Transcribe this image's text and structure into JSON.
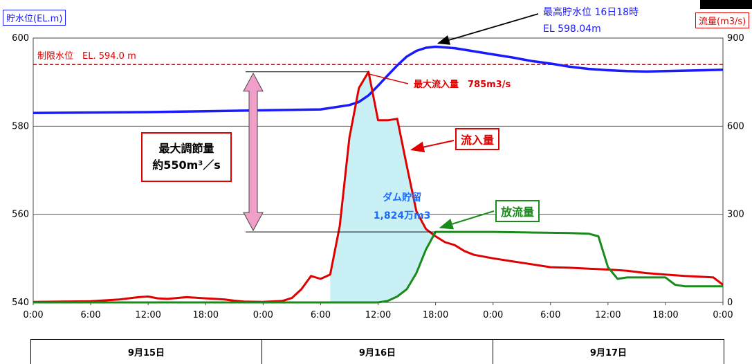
{
  "chart_data": {
    "type": "line",
    "left_axis": {
      "label": "貯水位(EL.m)",
      "min": 540,
      "max": 600,
      "ticks": [
        "540",
        "560",
        "580",
        "600"
      ]
    },
    "right_axis": {
      "label": "流量(m3/s)",
      "min": 0,
      "max": 900,
      "ticks": [
        "0",
        "300",
        "600",
        "900"
      ]
    },
    "x_tick_labels": [
      "0:00",
      "6:00",
      "12:00",
      "18:00",
      "0:00",
      "6:00",
      "12:00",
      "18:00",
      "0:00",
      "6:00",
      "12:00",
      "18:00",
      "0:00"
    ],
    "x_range_hours": [
      0,
      72
    ],
    "date_labels": [
      "9月15日",
      "9月16日",
      "9月17日"
    ],
    "series": [
      {
        "name": "貯水位",
        "axis": "left",
        "color": "#1a1aff",
        "points": [
          [
            0,
            583
          ],
          [
            6,
            583.1
          ],
          [
            12,
            583.2
          ],
          [
            18,
            583.4
          ],
          [
            24,
            583.6
          ],
          [
            30,
            583.8
          ],
          [
            33,
            584.8
          ],
          [
            34,
            585.5
          ],
          [
            35,
            587
          ],
          [
            36,
            589.2
          ],
          [
            37,
            591.5
          ],
          [
            38,
            593.8
          ],
          [
            39,
            595.8
          ],
          [
            40,
            597.1
          ],
          [
            41,
            597.8
          ],
          [
            42,
            598.04
          ],
          [
            44,
            597.7
          ],
          [
            46,
            597.0
          ],
          [
            48,
            596.3
          ],
          [
            50,
            595.6
          ],
          [
            52,
            594.8
          ],
          [
            54,
            594.2
          ],
          [
            56,
            593.5
          ],
          [
            58,
            593.0
          ],
          [
            60,
            592.7
          ],
          [
            62,
            592.5
          ],
          [
            64,
            592.4
          ],
          [
            66,
            592.5
          ],
          [
            68,
            592.6
          ],
          [
            70,
            592.7
          ],
          [
            72,
            592.8
          ]
        ]
      },
      {
        "name": "流入量",
        "axis": "right",
        "color": "#e00000",
        "points": [
          [
            0,
            2
          ],
          [
            3,
            3
          ],
          [
            6,
            4
          ],
          [
            9,
            10
          ],
          [
            11,
            18
          ],
          [
            12,
            20
          ],
          [
            13,
            14
          ],
          [
            14,
            12
          ],
          [
            16,
            18
          ],
          [
            17,
            16
          ],
          [
            18,
            14
          ],
          [
            19,
            12
          ],
          [
            20,
            10
          ],
          [
            21,
            6
          ],
          [
            22,
            3
          ],
          [
            24,
            2
          ],
          [
            26,
            5
          ],
          [
            27,
            15
          ],
          [
            28,
            45
          ],
          [
            29,
            90
          ],
          [
            30,
            80
          ],
          [
            31,
            95
          ],
          [
            32,
            260
          ],
          [
            33,
            560
          ],
          [
            34,
            730
          ],
          [
            35,
            785
          ],
          [
            36,
            620
          ],
          [
            37,
            620
          ],
          [
            38,
            625
          ],
          [
            39,
            465
          ],
          [
            40,
            310
          ],
          [
            41,
            250
          ],
          [
            42,
            225
          ],
          [
            43,
            205
          ],
          [
            44,
            195
          ],
          [
            45,
            175
          ],
          [
            46,
            162
          ],
          [
            48,
            150
          ],
          [
            50,
            140
          ],
          [
            51,
            135
          ],
          [
            52,
            130
          ],
          [
            54,
            120
          ],
          [
            56,
            118
          ],
          [
            58,
            115
          ],
          [
            60,
            112
          ],
          [
            62,
            108
          ],
          [
            64,
            100
          ],
          [
            66,
            95
          ],
          [
            68,
            90
          ],
          [
            70,
            87
          ],
          [
            71,
            85
          ],
          [
            72,
            60
          ]
        ]
      },
      {
        "name": "放流量",
        "axis": "right",
        "color": "#1a8a1a",
        "points": [
          [
            0,
            0
          ],
          [
            24,
            0
          ],
          [
            30,
            0
          ],
          [
            36,
            0
          ],
          [
            37,
            5
          ],
          [
            38,
            20
          ],
          [
            39,
            45
          ],
          [
            40,
            100
          ],
          [
            41,
            180
          ],
          [
            42,
            240
          ],
          [
            44,
            240
          ],
          [
            48,
            240
          ],
          [
            52,
            238
          ],
          [
            56,
            236
          ],
          [
            58,
            234
          ],
          [
            59,
            225
          ],
          [
            60,
            120
          ],
          [
            61,
            80
          ],
          [
            62,
            85
          ],
          [
            66,
            85
          ],
          [
            67,
            60
          ],
          [
            68,
            55
          ],
          [
            72,
            55
          ]
        ]
      }
    ],
    "limit_line": {
      "label": "制限水位　EL. 594.0 m",
      "value": 594.0,
      "color": "#e00000"
    },
    "annotations": {
      "max_level_line1": "最高貯水位 16日18時",
      "max_level_line2": "EL 598.04m",
      "max_inflow": "最大流入量　785m3/s",
      "inflow_tag": "流入量",
      "outflow_tag": "放流量",
      "storage_line1": "ダム貯留",
      "storage_line2": "1,824万m3",
      "max_regulation_line1": "最大調節量",
      "max_regulation_line2": "約550m³／s"
    },
    "storage_fill_color": "#c8f0f5",
    "arrow_color": "#f0a0c8",
    "grid": true
  }
}
